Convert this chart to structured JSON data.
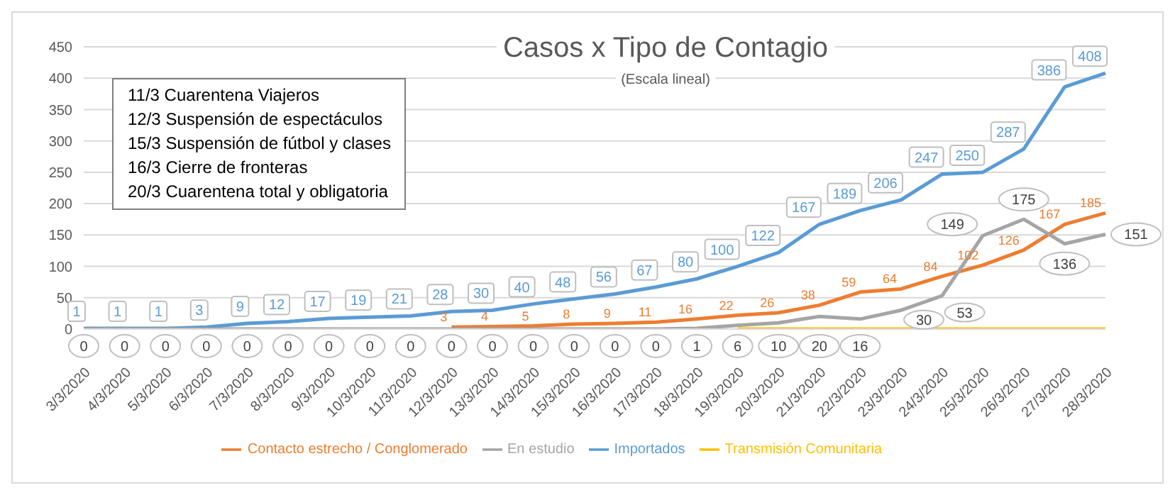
{
  "chart_data": {
    "type": "line",
    "title": "Casos x Tipo de Contagio",
    "subtitle": "(Escala lineal)",
    "annotations": [
      "11/3 Cuarentena Viajeros",
      "12/3 Suspensión de espectáculos",
      "15/3 Suspensión de fútbol y clases",
      "16/3 Cierre de fronteras",
      "20/3 Cuarentena total y obligatoria"
    ],
    "categories": [
      "3/3/2020",
      "4/3/2020",
      "5/3/2020",
      "6/3/2020",
      "7/3/2020",
      "8/3/2020",
      "9/3/2020",
      "10/3/2020",
      "11/3/2020",
      "12/3/2020",
      "13/3/2020",
      "14/3/2020",
      "15/3/2020",
      "16/3/2020",
      "17/3/2020",
      "18/3/2020",
      "19/3/2020",
      "20/3/2020",
      "21/3/2020",
      "22/3/2020",
      "23/3/2020",
      "24/3/2020",
      "25/3/2020",
      "26/3/2020",
      "27/3/2020",
      "28/3/2020"
    ],
    "series": [
      {
        "name": "Importados",
        "color": "#5b9bd5",
        "values": [
          1,
          1,
          1,
          3,
          9,
          12,
          17,
          19,
          21,
          28,
          30,
          40,
          48,
          56,
          67,
          80,
          100,
          122,
          167,
          189,
          206,
          247,
          250,
          287,
          386,
          408
        ],
        "value_labels": [
          "1",
          "1",
          "1",
          "3",
          "9",
          "12",
          "17",
          "19",
          "21",
          "28",
          "30",
          "40",
          "48",
          "56",
          "67",
          "80",
          "100",
          "122",
          "167",
          "189",
          "206",
          "247",
          "250",
          "287",
          "386",
          "408"
        ]
      },
      {
        "name": "Contacto estrecho / Conglomerado",
        "color": "#ed7d31",
        "values": [
          null,
          null,
          null,
          null,
          null,
          null,
          null,
          null,
          null,
          3,
          4,
          5,
          8,
          9,
          11,
          16,
          22,
          26,
          38,
          59,
          64,
          84,
          102,
          126,
          167,
          185
        ],
        "value_labels": [
          null,
          null,
          null,
          null,
          null,
          null,
          null,
          null,
          null,
          "3",
          "4",
          "5",
          "8",
          "9",
          "11",
          "16",
          "22",
          "26",
          "38",
          "59",
          "64",
          "84",
          "102",
          "126",
          "167",
          "185"
        ]
      },
      {
        "name": "Transmisión Comunitaria",
        "color": "#ffc000",
        "values": [
          null,
          null,
          null,
          null,
          null,
          null,
          null,
          null,
          null,
          null,
          null,
          null,
          null,
          null,
          null,
          null,
          0,
          0,
          0,
          0,
          0,
          0,
          0,
          0,
          0,
          0
        ]
      },
      {
        "name": "En estudio",
        "color": "#a5a5a5",
        "values": [
          0,
          0,
          0,
          0,
          0,
          0,
          0,
          0,
          0,
          0,
          0,
          0,
          0,
          0,
          0,
          1,
          6,
          10,
          20,
          16,
          30,
          53,
          149,
          175,
          136,
          151
        ],
        "value_labels": [
          "0",
          "0",
          "0",
          "0",
          "0",
          "0",
          "0",
          "0",
          "0",
          "0",
          "0",
          "0",
          "0",
          "0",
          "0",
          "1",
          "6",
          "10",
          "20",
          "16",
          "30",
          "53",
          "149",
          "175",
          "136",
          "151"
        ]
      }
    ],
    "ylim": [
      0,
      450
    ],
    "yticks": [
      0,
      50,
      100,
      150,
      200,
      250,
      300,
      350,
      400,
      450
    ],
    "grid": "y",
    "legend": "bottom"
  }
}
